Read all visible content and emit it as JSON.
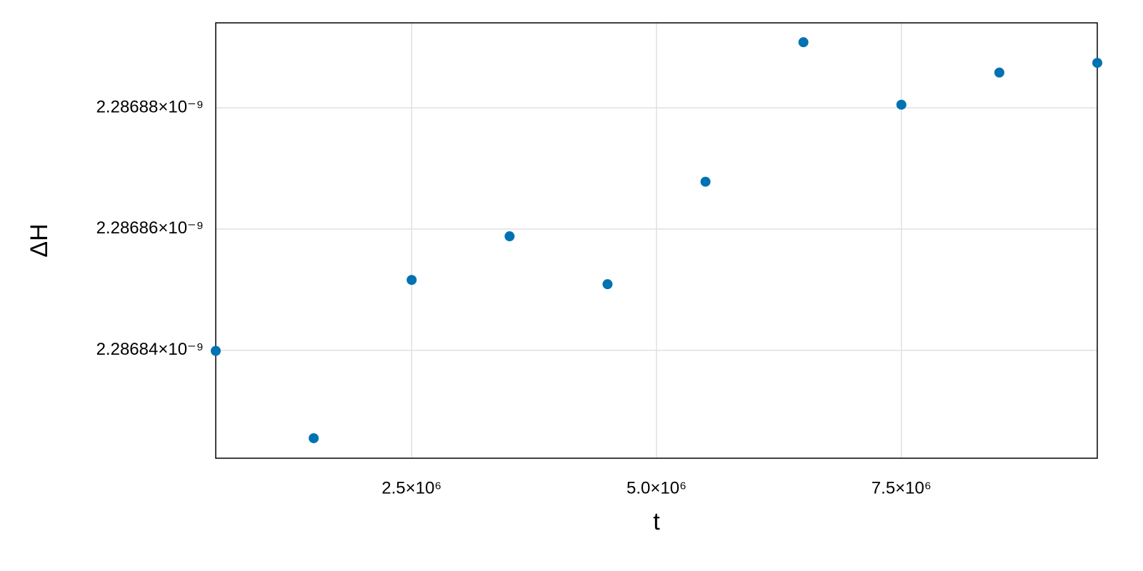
{
  "chart_data": {
    "type": "scatter",
    "xlabel": "t",
    "ylabel": "ΔH",
    "color": "#0072b2",
    "grid": true,
    "x": [
      500000,
      1500000,
      2500000,
      3500000,
      4500000,
      5500000,
      6500000,
      7500000,
      8500000,
      9500000
    ],
    "series": [
      {
        "values": [
          2.2868399e-09,
          2.2868255e-09,
          2.2868516e-09,
          2.2868588e-09,
          2.2868509e-09,
          2.2868678e-09,
          2.2868908e-09,
          2.2868805e-09,
          2.2868858e-09,
          2.2868874e-09
        ]
      }
    ],
    "xlim": [
      500000,
      9500000
    ],
    "xticks": [
      {
        "value": 2500000,
        "label": "2.5×10⁶"
      },
      {
        "value": 5000000,
        "label": "5.0×10⁶"
      },
      {
        "value": 7500000,
        "label": "7.5×10⁶"
      }
    ],
    "ylim": [
      2.2868222e-09,
      2.286894e-09
    ],
    "yticks": [
      {
        "value": 2.28684e-09,
        "label": "2.28684×10⁻⁹"
      },
      {
        "value": 2.28686e-09,
        "label": "2.28686×10⁻⁹"
      },
      {
        "value": 2.28688e-09,
        "label": "2.28688×10⁻⁹"
      }
    ]
  }
}
